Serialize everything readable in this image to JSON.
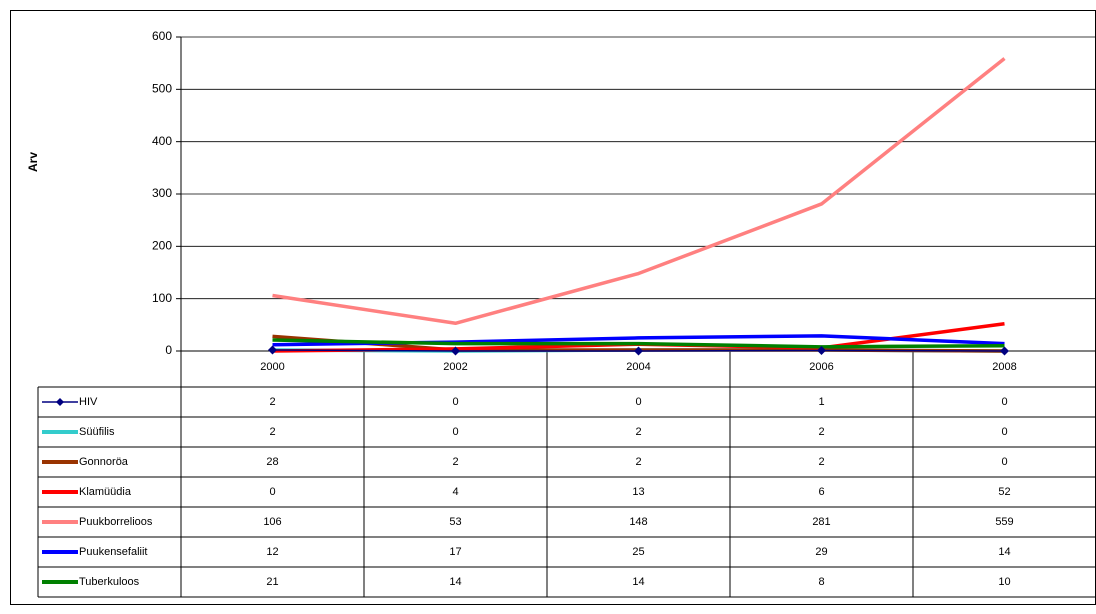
{
  "chart_data": {
    "type": "line",
    "y_label": "Arv",
    "categories": [
      "2000",
      "2002",
      "2004",
      "2006",
      "2008"
    ],
    "series": [
      {
        "name": "HIV",
        "color": "#000080",
        "marker": "diamond",
        "values": [
          2,
          0,
          0,
          1,
          0
        ]
      },
      {
        "name": "Süüfilis",
        "color": "#33cccc",
        "values": [
          2,
          0,
          2,
          2,
          0
        ]
      },
      {
        "name": "Gonnoröa",
        "color": "#993300",
        "values": [
          28,
          2,
          2,
          2,
          0
        ]
      },
      {
        "name": "Klamüüdia",
        "color": "#ff0000",
        "values": [
          0,
          4,
          13,
          6,
          52
        ]
      },
      {
        "name": "Puukborrelioos",
        "color": "#ff8080",
        "values": [
          106,
          53,
          148,
          281,
          559
        ]
      },
      {
        "name": "Puukensefaliit",
        "color": "#0000ff",
        "values": [
          12,
          17,
          25,
          29,
          14
        ]
      },
      {
        "name": "Tuberkuloos",
        "color": "#008000",
        "values": [
          21,
          14,
          14,
          8,
          10
        ]
      }
    ],
    "ylim": [
      0,
      600
    ],
    "yticks": [
      0,
      100,
      200,
      300,
      400,
      500,
      600
    ],
    "grid": true,
    "data_table": true
  }
}
